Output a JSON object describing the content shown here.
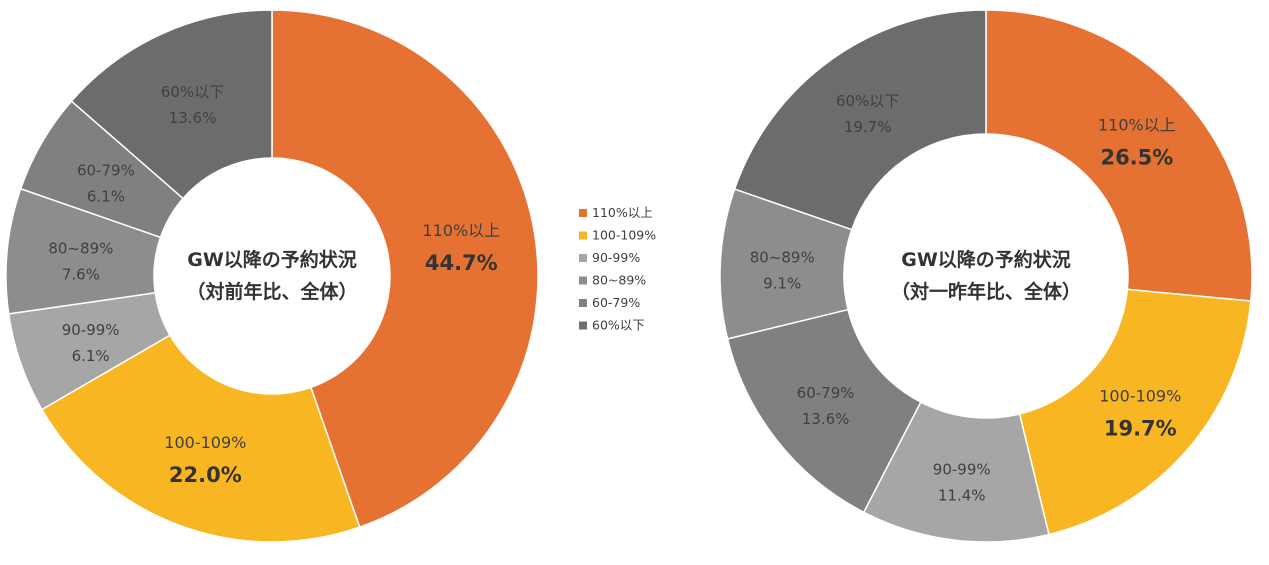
{
  "colors": {
    "110": "#E57232",
    "100-109": "#F8B623",
    "90-99": "#A6A6A6",
    "80-89": "#8D8D8D",
    "60-79": "#808080",
    "under60": "#6C6C6C"
  },
  "legend": {
    "items": [
      {
        "label": "110%以上",
        "color_key": "110"
      },
      {
        "label": "100-109%",
        "color_key": "100-109"
      },
      {
        "label": "90-99%",
        "color_key": "90-99"
      },
      {
        "label": "80~89%",
        "color_key": "80-89"
      },
      {
        "label": "60-79%",
        "color_key": "60-79"
      },
      {
        "label": "60%以下",
        "color_key": "under60"
      }
    ]
  },
  "chart_data": [
    {
      "type": "pie",
      "donut": true,
      "center_title": [
        "GW以降の予約状況",
        "（対前年比、全体）"
      ],
      "slices": [
        {
          "label": "110%以上",
          "value": 44.7,
          "value_label": "44.7%",
          "color_key": "110",
          "emphasis": true
        },
        {
          "label": "100-109%",
          "value": 22.0,
          "value_label": "22.0%",
          "color_key": "100-109",
          "emphasis": true
        },
        {
          "label": "90-99%",
          "value": 6.1,
          "value_label": "6.1%",
          "color_key": "90-99",
          "emphasis": false
        },
        {
          "label": "80~89%",
          "value": 7.6,
          "value_label": "7.6%",
          "color_key": "80-89",
          "emphasis": false
        },
        {
          "label": "60-79%",
          "value": 6.1,
          "value_label": "6.1%",
          "color_key": "60-79",
          "emphasis": false
        },
        {
          "label": "60%以下",
          "value": 13.6,
          "value_label": "13.6%",
          "color_key": "under60",
          "emphasis": false
        }
      ]
    },
    {
      "type": "pie",
      "donut": true,
      "center_title": [
        "GW以降の予約状況",
        "（対一昨年比、全体）"
      ],
      "slices": [
        {
          "label": "110%以上",
          "value": 26.5,
          "value_label": "26.5%",
          "color_key": "110",
          "emphasis": true
        },
        {
          "label": "100-109%",
          "value": 19.7,
          "value_label": "19.7%",
          "color_key": "100-109",
          "emphasis": true
        },
        {
          "label": "90-99%",
          "value": 11.4,
          "value_label": "11.4%",
          "color_key": "90-99",
          "emphasis": false
        },
        {
          "label": "60-79%",
          "value": 13.6,
          "value_label": "13.6%",
          "color_key": "60-79",
          "emphasis": false
        },
        {
          "label": "80~89%",
          "value": 9.1,
          "value_label": "9.1%",
          "color_key": "80-89",
          "emphasis": false
        },
        {
          "label": "60%以下",
          "value": 19.7,
          "value_label": "19.7%",
          "color_key": "under60",
          "emphasis": false
        }
      ]
    }
  ]
}
